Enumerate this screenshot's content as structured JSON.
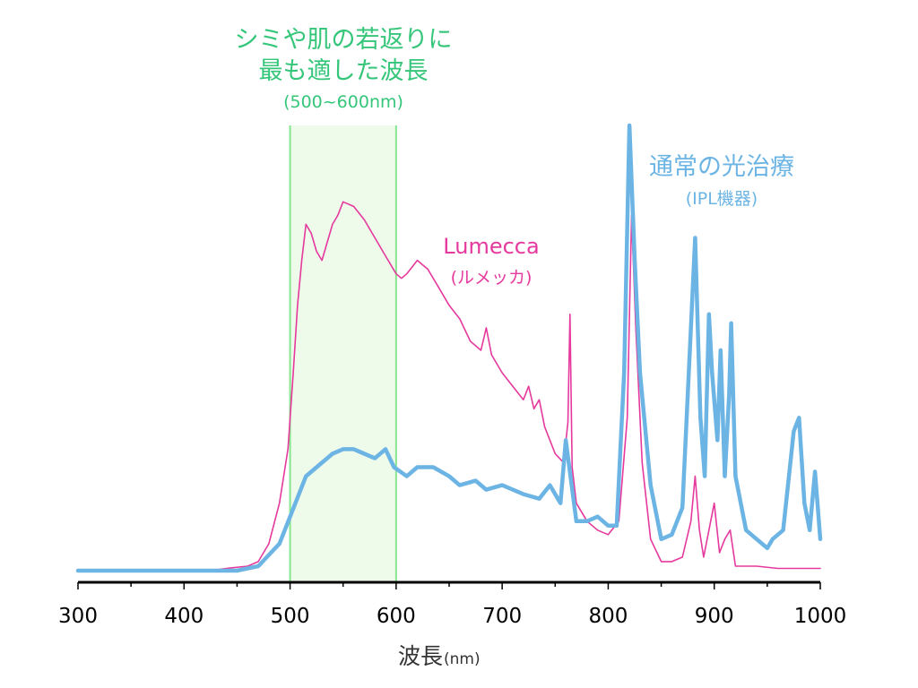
{
  "chart_data": {
    "type": "line",
    "xlabel": "波長",
    "xlabel_unit": "(nm)",
    "xlim": [
      300,
      1000
    ],
    "ylim": [
      0,
      100
    ],
    "x_ticks": [
      300,
      400,
      500,
      600,
      700,
      800,
      900,
      1000
    ],
    "highlight_band": {
      "x_range": [
        500,
        600
      ],
      "title_line1": "シミや肌の若返りに",
      "title_line2": "最も適した波長",
      "range_label": "(500~600nm)"
    },
    "colors": {
      "band_fill": "#eefaea",
      "band_line": "#86e68d",
      "band_text": "#35c67a",
      "lumecca": "#e5399d",
      "ipl": "#6cb4e4",
      "axis": "#000000"
    },
    "series": [
      {
        "name": "Lumecca",
        "subname": "(ルメッカ)",
        "points": [
          [
            300,
            1
          ],
          [
            350,
            1
          ],
          [
            400,
            1
          ],
          [
            430,
            1.2
          ],
          [
            440,
            1.5
          ],
          [
            460,
            2
          ],
          [
            470,
            3
          ],
          [
            480,
            7
          ],
          [
            490,
            16
          ],
          [
            498,
            28
          ],
          [
            503,
            45
          ],
          [
            507,
            60
          ],
          [
            511,
            70
          ],
          [
            515,
            78
          ],
          [
            520,
            76
          ],
          [
            525,
            72
          ],
          [
            530,
            70
          ],
          [
            535,
            74
          ],
          [
            540,
            78
          ],
          [
            545,
            80
          ],
          [
            550,
            83
          ],
          [
            560,
            82
          ],
          [
            570,
            79
          ],
          [
            580,
            75
          ],
          [
            590,
            71
          ],
          [
            600,
            67
          ],
          [
            605,
            66
          ],
          [
            610,
            67
          ],
          [
            620,
            70
          ],
          [
            630,
            68
          ],
          [
            640,
            64
          ],
          [
            650,
            60
          ],
          [
            660,
            57
          ],
          [
            670,
            52
          ],
          [
            680,
            50
          ],
          [
            685,
            55
          ],
          [
            690,
            49
          ],
          [
            700,
            45
          ],
          [
            710,
            42
          ],
          [
            720,
            39
          ],
          [
            725,
            42
          ],
          [
            730,
            37
          ],
          [
            735,
            39
          ],
          [
            740,
            33
          ],
          [
            750,
            27
          ],
          [
            758,
            25
          ],
          [
            762,
            34
          ],
          [
            764,
            58
          ],
          [
            766,
            24
          ],
          [
            770,
            16
          ],
          [
            780,
            12
          ],
          [
            790,
            10
          ],
          [
            800,
            9
          ],
          [
            810,
            12
          ],
          [
            818,
            35
          ],
          [
            822,
            80
          ],
          [
            826,
            55
          ],
          [
            832,
            25
          ],
          [
            840,
            8
          ],
          [
            850,
            3
          ],
          [
            860,
            3
          ],
          [
            870,
            4
          ],
          [
            878,
            12
          ],
          [
            882,
            22
          ],
          [
            886,
            10
          ],
          [
            890,
            4
          ],
          [
            895,
            10
          ],
          [
            900,
            16
          ],
          [
            905,
            5
          ],
          [
            910,
            8
          ],
          [
            915,
            10
          ],
          [
            920,
            2
          ],
          [
            940,
            2
          ],
          [
            960,
            1.5
          ],
          [
            980,
            1.5
          ],
          [
            1000,
            1.5
          ]
        ]
      },
      {
        "name": "通常の光治療",
        "subname": "(IPL機器)",
        "points": [
          [
            300,
            1
          ],
          [
            450,
            1
          ],
          [
            470,
            2
          ],
          [
            490,
            7
          ],
          [
            505,
            16
          ],
          [
            515,
            22
          ],
          [
            530,
            25
          ],
          [
            540,
            27
          ],
          [
            550,
            28
          ],
          [
            560,
            28
          ],
          [
            570,
            27
          ],
          [
            580,
            26
          ],
          [
            590,
            28
          ],
          [
            598,
            24
          ],
          [
            610,
            22
          ],
          [
            620,
            24
          ],
          [
            635,
            24
          ],
          [
            650,
            22
          ],
          [
            660,
            20
          ],
          [
            675,
            21
          ],
          [
            685,
            19
          ],
          [
            700,
            20
          ],
          [
            720,
            18
          ],
          [
            735,
            17
          ],
          [
            745,
            20
          ],
          [
            755,
            16
          ],
          [
            760,
            30
          ],
          [
            770,
            12
          ],
          [
            780,
            12
          ],
          [
            790,
            13
          ],
          [
            800,
            11
          ],
          [
            808,
            11
          ],
          [
            815,
            45
          ],
          [
            820,
            100
          ],
          [
            825,
            70
          ],
          [
            830,
            45
          ],
          [
            840,
            20
          ],
          [
            850,
            8
          ],
          [
            860,
            9
          ],
          [
            870,
            15
          ],
          [
            878,
            55
          ],
          [
            882,
            75
          ],
          [
            887,
            35
          ],
          [
            891,
            22
          ],
          [
            895,
            58
          ],
          [
            898,
            45
          ],
          [
            903,
            30
          ],
          [
            906,
            50
          ],
          [
            910,
            22
          ],
          [
            914,
            40
          ],
          [
            916,
            56
          ],
          [
            920,
            22
          ],
          [
            930,
            10
          ],
          [
            940,
            8
          ],
          [
            950,
            6
          ],
          [
            955,
            8
          ],
          [
            965,
            10
          ],
          [
            975,
            32
          ],
          [
            980,
            35
          ],
          [
            985,
            16
          ],
          [
            990,
            10
          ],
          [
            995,
            23
          ],
          [
            1000,
            8
          ]
        ]
      }
    ]
  }
}
